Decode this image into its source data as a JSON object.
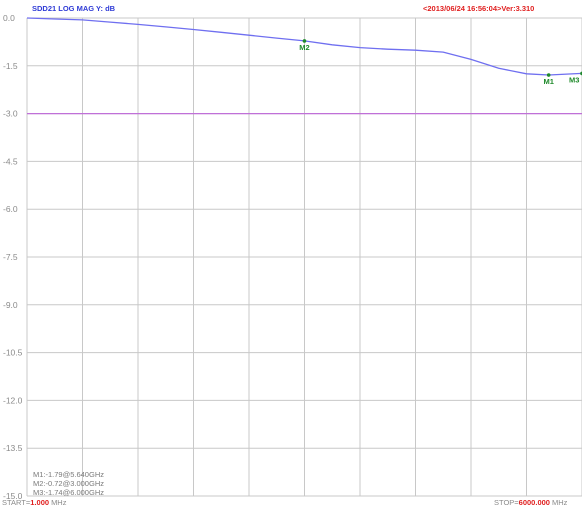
{
  "header": {
    "title": "SDD21  LOG MAG    Y: dB",
    "stamp": "<2013/06/24 16:56:04>Ver:3.310"
  },
  "footer": {
    "start_label": "START=",
    "start_value": "1.000",
    "start_unit": "MHz",
    "stop_label": "STOP=",
    "stop_value": "6000.000",
    "stop_unit": "MHz"
  },
  "readouts": [
    "M1:-1.79@5.640GHz",
    "M2:-0.72@3.000GHz",
    "M3:-1.74@6.000GHz"
  ],
  "colors": {
    "trace": "#6f6ff0",
    "reference_line": "#c070d8",
    "grid": "#c8c8c8",
    "marker_label": "#1e8a2a",
    "header_title": "#2f3bd6",
    "header_stamp": "#e02020"
  },
  "chart_data": {
    "type": "line",
    "title": "SDD21  LOG MAG    Y: dB",
    "xlabel": "",
    "ylabel": "",
    "xlim": [
      0.001,
      6.0
    ],
    "ylim": [
      -15.0,
      0.0
    ],
    "x_unit": "GHz",
    "y_unit": "dB",
    "yticks": [
      "0.0",
      "-1.5",
      "-3.0",
      "-4.5",
      "-6.0",
      "-7.5",
      "-9.0",
      "-10.5",
      "-12.0",
      "-13.5",
      "-15.0"
    ],
    "ytick_values": [
      0.0,
      -1.5,
      -3.0,
      -4.5,
      -6.0,
      -7.5,
      -9.0,
      -10.5,
      -12.0,
      -13.5,
      -15.0
    ],
    "xgrid_divisions": 10,
    "grid": true,
    "reference_line": -3.0,
    "series": [
      {
        "x": [
          0.001,
          0.3,
          0.6,
          0.9,
          1.2,
          1.5,
          1.8,
          2.1,
          2.4,
          2.7,
          3.0,
          3.3,
          3.6,
          3.9,
          4.2,
          4.5,
          4.8,
          5.1,
          5.4,
          5.64,
          6.0
        ],
        "y": [
          0.0,
          -0.03,
          -0.06,
          -0.13,
          -0.2,
          -0.28,
          -0.36,
          -0.45,
          -0.54,
          -0.63,
          -0.72,
          -0.84,
          -0.93,
          -0.98,
          -1.01,
          -1.07,
          -1.3,
          -1.58,
          -1.75,
          -1.79,
          -1.74
        ]
      }
    ],
    "markers": [
      {
        "label": "M1",
        "x": 5.64,
        "y": -1.79
      },
      {
        "label": "M2",
        "x": 3.0,
        "y": -0.72
      },
      {
        "label": "M3",
        "x": 6.0,
        "y": -1.74
      }
    ]
  }
}
